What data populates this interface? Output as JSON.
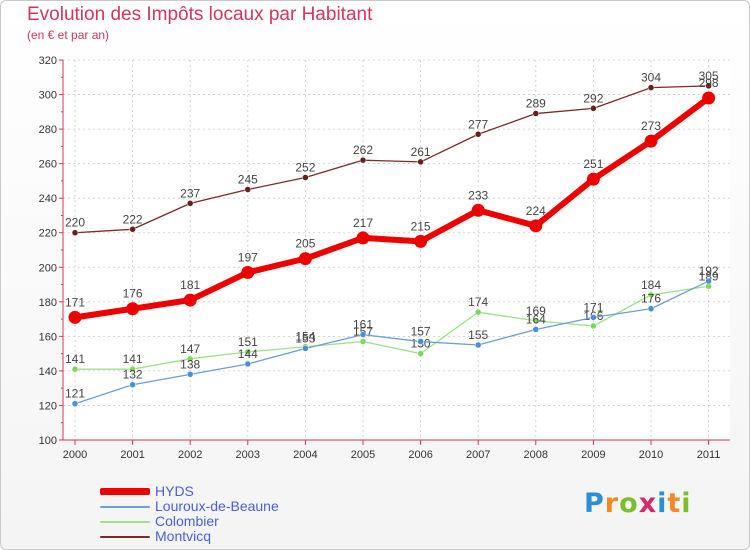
{
  "title": "Evolution des Impôts locaux par Habitant",
  "subtitle": "(en € et par an)",
  "logo_text": "Proxiti",
  "colors": {
    "title": "#d1375a",
    "axis": "#d1375a",
    "grid": "#c9c9c9",
    "legend_text": "#4a5ee0"
  },
  "chart_data": {
    "type": "line",
    "title": "Evolution des Impôts locaux par Habitant",
    "subtitle": "(en € et par an)",
    "xlabel": "",
    "ylabel": "",
    "categories": [
      "2000",
      "2001",
      "2002",
      "2003",
      "2004",
      "2005",
      "2006",
      "2007",
      "2008",
      "2009",
      "2010",
      "2011"
    ],
    "yticks": [
      "100",
      "120",
      "140",
      "160",
      "180",
      "200",
      "220",
      "240",
      "260",
      "280",
      "300",
      "320"
    ],
    "ylim": [
      100,
      320
    ],
    "grid": true,
    "legend_position": "bottom-left",
    "series": [
      {
        "name": "HYDS",
        "color": "#ee0000",
        "marker": "#ee0000",
        "weight": "thick",
        "values": [
          171,
          176,
          181,
          197,
          205,
          217,
          215,
          233,
          224,
          251,
          273,
          298
        ],
        "labels": [
          "171",
          "176",
          "181",
          "197",
          "205",
          "217",
          "215",
          "233",
          "224",
          "251",
          "273",
          "298"
        ]
      },
      {
        "name": "Louroux-de-Beaune",
        "color": "#6d9fcf",
        "marker": "#4c8fd9",
        "weight": "thin",
        "values": [
          121,
          132,
          138,
          144,
          153,
          161,
          157,
          155,
          164,
          171,
          176,
          192
        ],
        "labels": [
          "121",
          "132",
          "138",
          "144",
          "153",
          "161",
          "157",
          "155",
          "164",
          "171",
          "176",
          "192"
        ]
      },
      {
        "name": "Colombier",
        "color": "#9fe08a",
        "marker": "#7fd65a",
        "weight": "thin",
        "values": [
          141,
          141,
          147,
          151,
          154,
          157,
          150,
          174,
          169,
          166,
          184,
          189
        ],
        "labels": [
          "141",
          "141",
          "147",
          "151",
          "154",
          "157",
          "150",
          "174",
          "169",
          "166",
          "184",
          "189"
        ]
      },
      {
        "name": "Montvicq",
        "color": "#7a2a2a",
        "marker": "#6a1f1f",
        "weight": "thin",
        "values": [
          220,
          222,
          237,
          245,
          252,
          262,
          261,
          277,
          289,
          292,
          304,
          305
        ],
        "labels": [
          "220",
          "222",
          "237",
          "245",
          "252",
          "262",
          "261",
          "277",
          "289",
          "292",
          "304",
          "305"
        ]
      }
    ]
  }
}
